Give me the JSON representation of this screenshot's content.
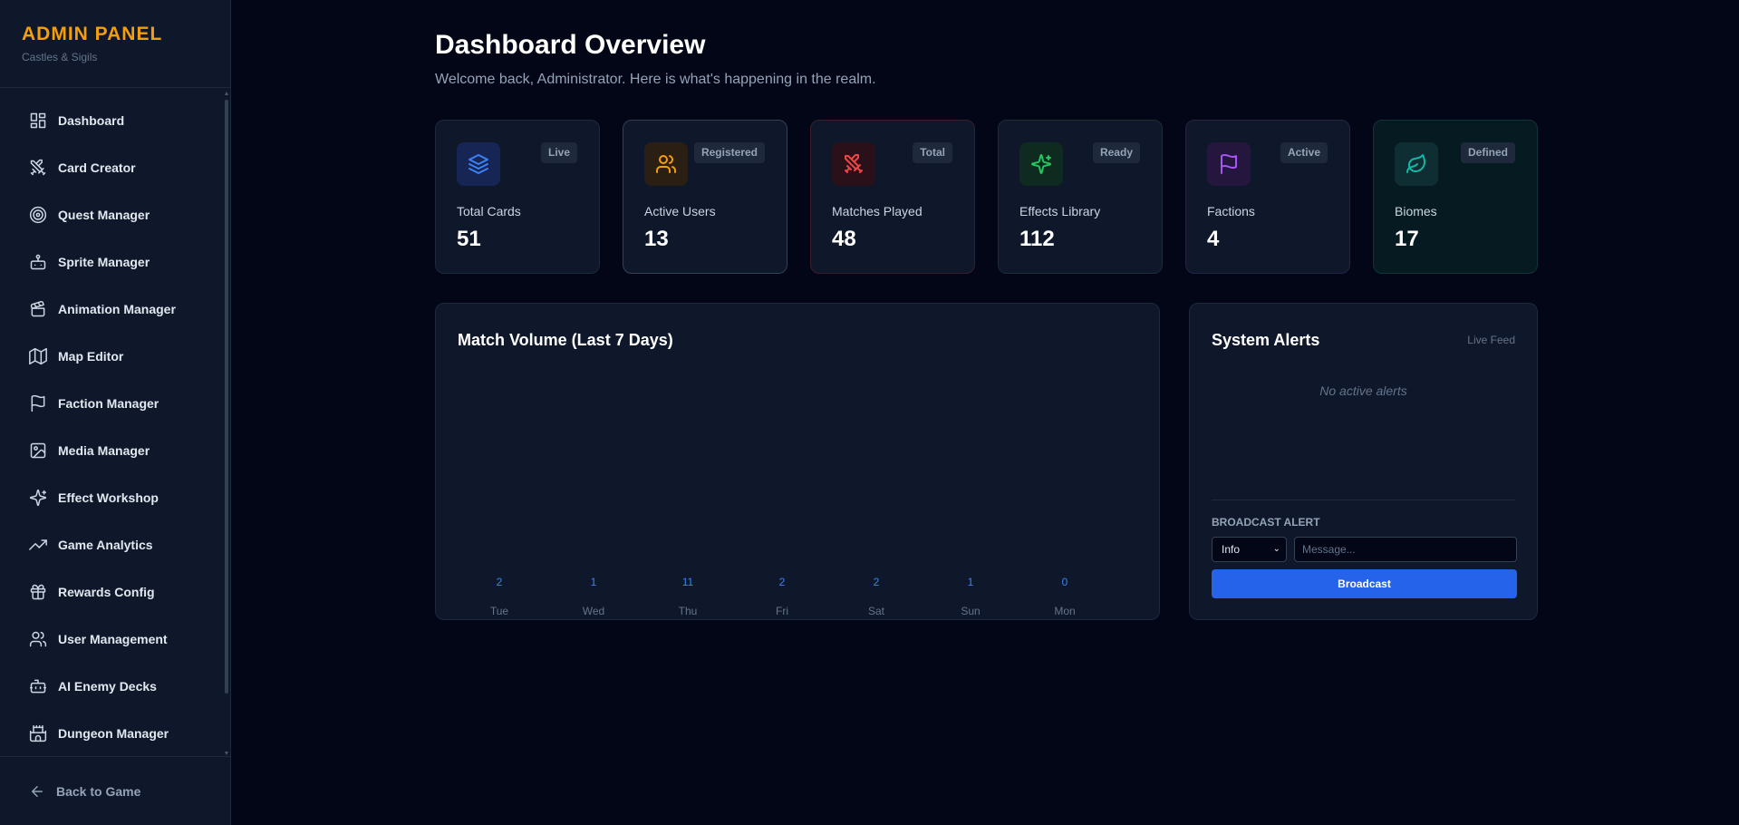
{
  "brand": {
    "title": "ADMIN PANEL",
    "subtitle": "Castles & Sigils"
  },
  "sidebar": {
    "items": [
      {
        "label": "Dashboard",
        "icon": "dashboard-icon"
      },
      {
        "label": "Card Creator",
        "icon": "swords-icon"
      },
      {
        "label": "Quest Manager",
        "icon": "target-icon"
      },
      {
        "label": "Sprite Manager",
        "icon": "robot-icon"
      },
      {
        "label": "Animation Manager",
        "icon": "clapperboard-icon"
      },
      {
        "label": "Map Editor",
        "icon": "map-icon"
      },
      {
        "label": "Faction Manager",
        "icon": "flag-icon"
      },
      {
        "label": "Media Manager",
        "icon": "image-icon"
      },
      {
        "label": "Effect Workshop",
        "icon": "sparkles-icon"
      },
      {
        "label": "Game Analytics",
        "icon": "trending-up-icon"
      },
      {
        "label": "Rewards Config",
        "icon": "gift-icon"
      },
      {
        "label": "User Management",
        "icon": "users-icon"
      },
      {
        "label": "AI Enemy Decks",
        "icon": "bot-icon"
      },
      {
        "label": "Dungeon Manager",
        "icon": "castle-icon"
      }
    ],
    "back_label": "Back to Game"
  },
  "header": {
    "title": "Dashboard Overview",
    "subtitle": "Welcome back, Administrator. Here is what's happening in the realm."
  },
  "stats": [
    {
      "label": "Total Cards",
      "value": "51",
      "badge": "Live",
      "icon": "layers-icon",
      "color": "#3b82f6",
      "bg": "#172554",
      "border": "#1e293b",
      "card_bg": "#0f172a"
    },
    {
      "label": "Active Users",
      "value": "13",
      "badge": "Registered",
      "icon": "users-icon",
      "color": "#f59e0b",
      "bg": "#2a1f12",
      "border": "#334155",
      "card_bg": "#0f172a"
    },
    {
      "label": "Matches Played",
      "value": "48",
      "badge": "Total",
      "icon": "swords-icon",
      "color": "#ef4444",
      "bg": "#2a1119",
      "border": "#3b1d2a",
      "card_bg": "#0f172a"
    },
    {
      "label": "Effects Library",
      "value": "112",
      "badge": "Ready",
      "icon": "sparkles-icon",
      "color": "#22c55e",
      "bg": "#0f2a1e",
      "border": "#1e2e32",
      "card_bg": "#0f172a"
    },
    {
      "label": "Factions",
      "value": "4",
      "badge": "Active",
      "icon": "flag-icon",
      "color": "#a855f7",
      "bg": "#24163d",
      "border": "#262343",
      "card_bg": "#0f172a"
    },
    {
      "label": "Biomes",
      "value": "17",
      "badge": "Defined",
      "icon": "leaf-icon",
      "color": "#14b8a6",
      "bg": "#0f2e33",
      "border": "#12323a",
      "card_bg": "#061a22"
    }
  ],
  "chart_data": {
    "type": "bar",
    "title": "Match Volume (Last 7 Days)",
    "categories": [
      "Tue",
      "Wed",
      "Thu",
      "Fri",
      "Sat",
      "Sun",
      "Mon"
    ],
    "values": [
      2,
      1,
      11,
      2,
      2,
      1,
      0
    ]
  },
  "alerts": {
    "title": "System Alerts",
    "live_feed": "Live Feed",
    "empty_text": "No active alerts",
    "broadcast_label": "BROADCAST ALERT",
    "severity_selected": "Info",
    "message_placeholder": "Message...",
    "button_label": "Broadcast",
    "accent": "#2563eb"
  }
}
